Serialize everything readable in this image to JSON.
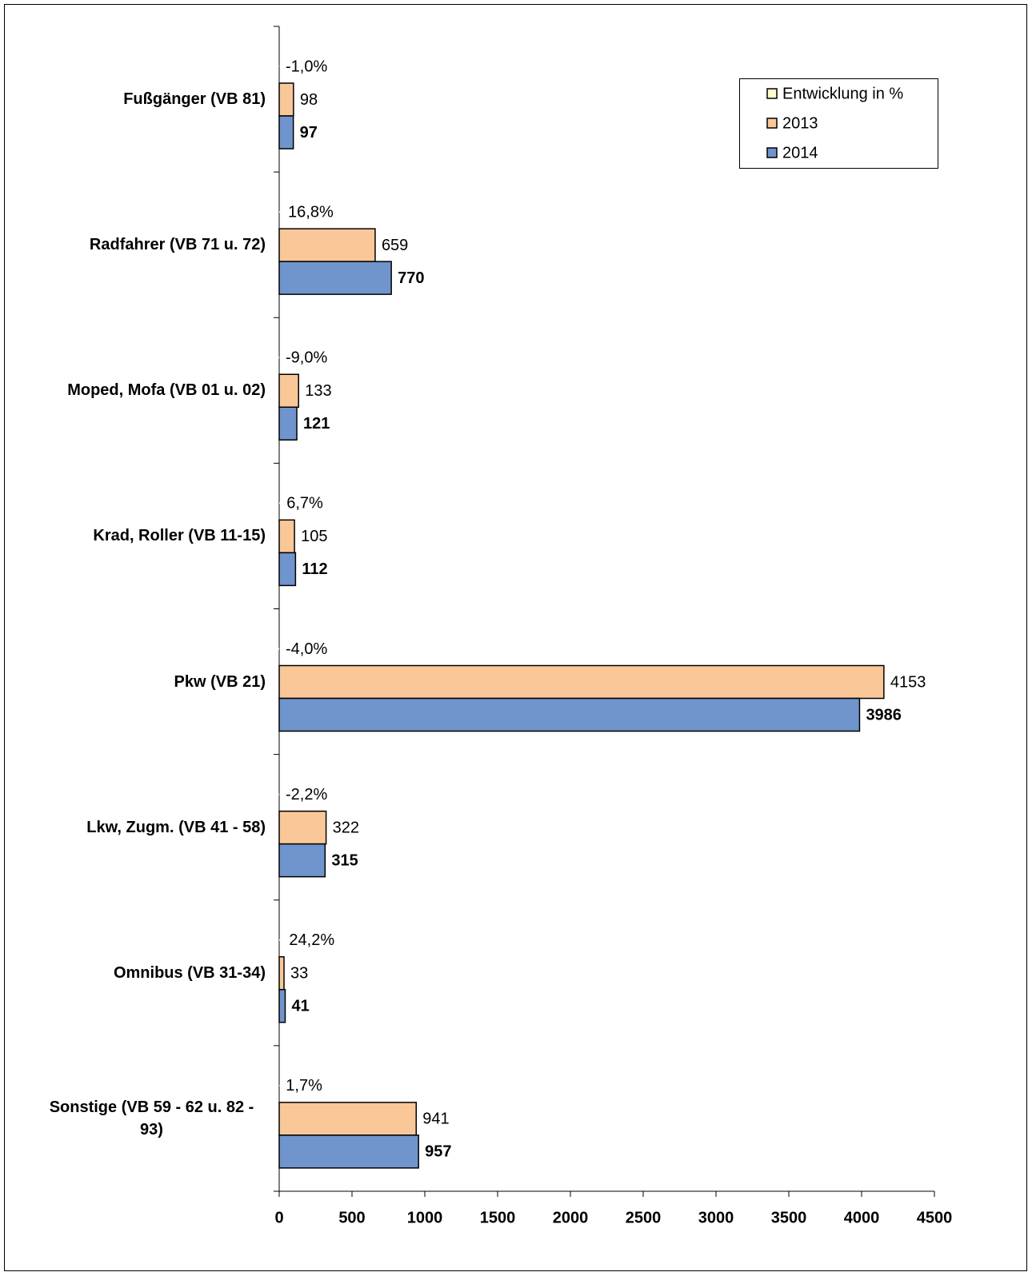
{
  "chart_data": {
    "type": "bar",
    "orientation": "horizontal",
    "categories": [
      "Fußgänger (VB 81)",
      "Radfahrer (VB 71 u. 72)",
      "Moped, Mofa (VB 01 u. 02)",
      "Krad, Roller (VB 11-15)",
      "Pkw (VB 21)",
      "Lkw, Zugm. (VB 41 - 58)",
      "Omnibus (VB 31-34)",
      "Sonstige (VB 59 - 62 u. 82 - 93)"
    ],
    "series": [
      {
        "name": "Entwicklung in %",
        "color": "#ffffcc",
        "values": [
          -1.0,
          16.8,
          -9.0,
          6.7,
          -4.0,
          -2.2,
          24.2,
          1.7
        ],
        "value_labels": [
          "-1,0%",
          "16,8%",
          "-9,0%",
          "6,7%",
          "-4,0%",
          "-2,2%",
          "24,2%",
          "1,7%"
        ]
      },
      {
        "name": "2013",
        "color": "#fac898",
        "values": [
          98,
          659,
          133,
          105,
          4153,
          322,
          33,
          941
        ]
      },
      {
        "name": "2014",
        "color": "#7094cc",
        "values": [
          97,
          770,
          121,
          112,
          3986,
          315,
          41,
          957
        ]
      }
    ],
    "xlim": [
      0,
      4500
    ],
    "xticks": [
      0,
      500,
      1000,
      1500,
      2000,
      2500,
      3000,
      3500,
      4000,
      4500
    ],
    "legend": "top-right"
  }
}
